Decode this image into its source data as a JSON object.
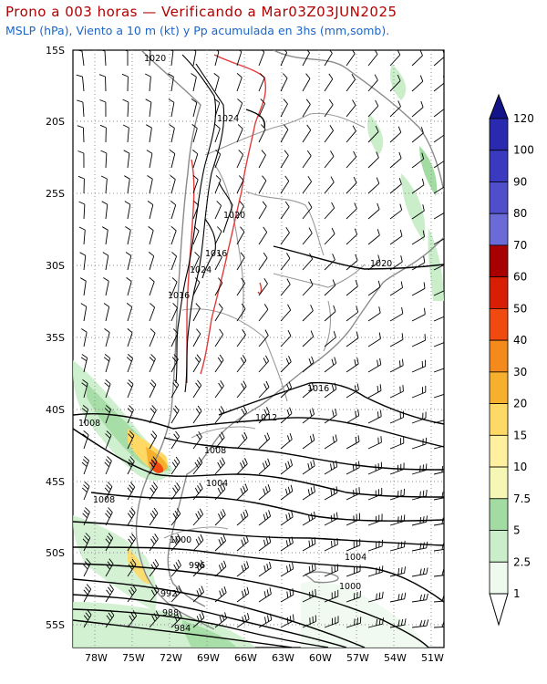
{
  "title": "Prono a 003 horas — Verificando a Mar03Z03JUN2025",
  "subtitle": "MSLP (hPa), Viento a 10 m (kt) y Pp acumulada en 3hs (mm,somb).",
  "lat_labels": [
    "15S",
    "20S",
    "25S",
    "30S",
    "35S",
    "40S",
    "45S",
    "50S",
    "55S"
  ],
  "lon_labels": [
    "78W",
    "75W",
    "72W",
    "69W",
    "66W",
    "63W",
    "60W",
    "57W",
    "54W",
    "51W"
  ],
  "isobar_labels": [
    "1020",
    "1024",
    "1020",
    "1016",
    "1024",
    "1016",
    "1020",
    "1016",
    "1012",
    "1008",
    "1008",
    "1004",
    "1008",
    "1000",
    "996",
    "992",
    "988",
    "984",
    "1004",
    "1000"
  ],
  "colorbar": {
    "labels": [
      "1",
      "2.5",
      "5",
      "7.5",
      "10",
      "15",
      "20",
      "30",
      "40",
      "50",
      "60",
      "70",
      "80",
      "90",
      "100",
      "120"
    ],
    "colors": [
      "#eefaee",
      "#c9eec9",
      "#a3dca3",
      "#f7f7b5",
      "#fff0a0",
      "#ffd966",
      "#f7b02e",
      "#f48a1c",
      "#f04a10",
      "#d81e05",
      "#a80000",
      "#6b6bd8",
      "#4f4fcc",
      "#3a3ac0",
      "#2a2ab0",
      "#14148a"
    ]
  }
}
